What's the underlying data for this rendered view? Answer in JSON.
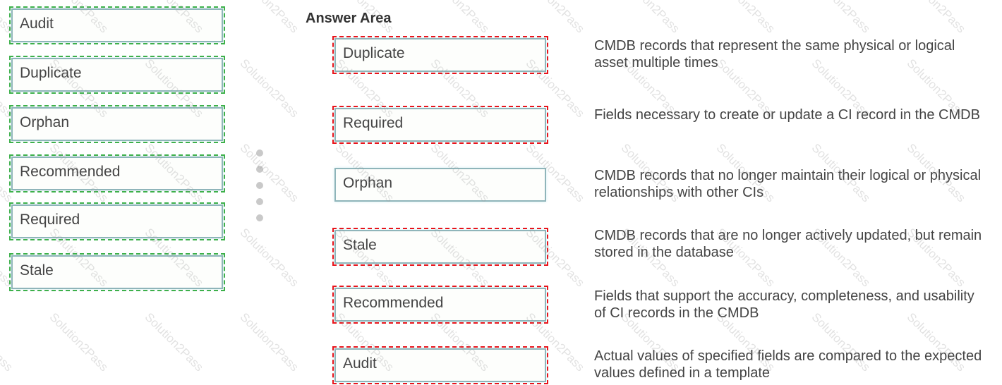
{
  "source_items": [
    "Audit",
    "Duplicate",
    "Orphan",
    "Recommended",
    "Required",
    "Stale"
  ],
  "answer_area": {
    "title": "Answer Area",
    "rows": [
      {
        "answer": "Duplicate",
        "description": "CMDB records that represent the same physical or logical asset multiple times",
        "highlighted": true
      },
      {
        "answer": "Required",
        "description": "Fields necessary to create or update a CI record in the CMDB",
        "highlighted": true
      },
      {
        "answer": "Orphan",
        "description": "CMDB records that no longer maintain their logical or physical relationships with other CIs",
        "highlighted": false
      },
      {
        "answer": "Stale",
        "description": "CMDB records that are no longer actively updated, but remain stored in the database",
        "highlighted": true
      },
      {
        "answer": "Recommended",
        "description": "Fields that support the accuracy, completeness, and usability of CI records in the CMDB",
        "highlighted": true
      },
      {
        "answer": "Audit",
        "description": "Actual values of specified fields are compared to the expected values defined in a template",
        "highlighted": true
      }
    ]
  },
  "watermark": "Solution2Pass",
  "colors": {
    "source_outline": "#3db04a",
    "answer_outline": "#e8141b",
    "box_border": "#8fb5ba"
  }
}
